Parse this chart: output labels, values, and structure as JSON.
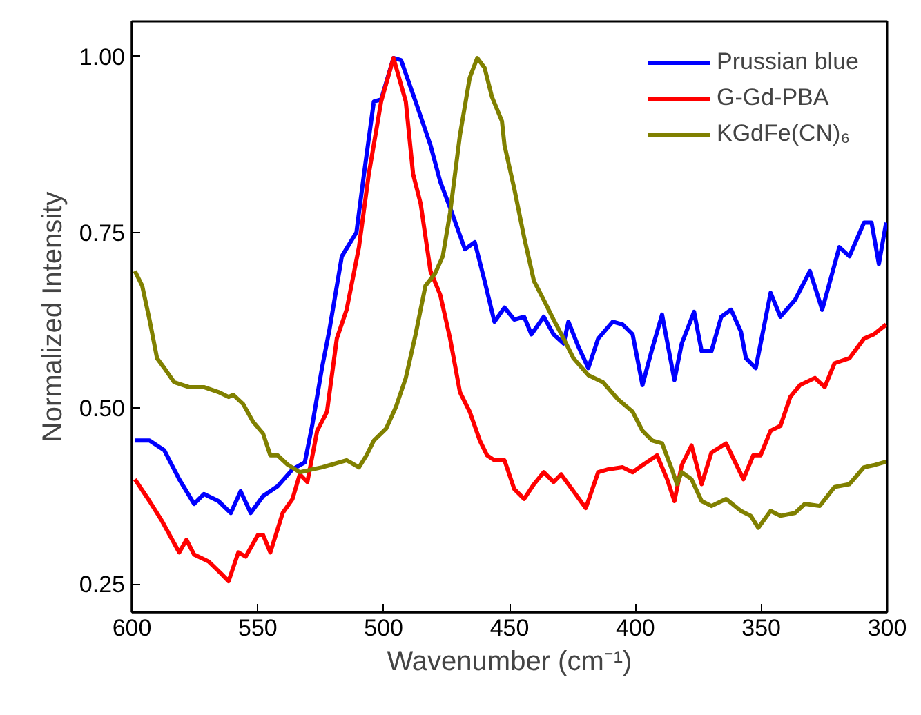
{
  "chart_data": {
    "type": "line",
    "xlabel": "Wavenumber (cm⁻¹)",
    "ylabel": "Normalized Intensity",
    "xlim": [
      600,
      300
    ],
    "ylim": [
      0.21,
      1.05
    ],
    "xticks": [
      600,
      550,
      500,
      450,
      400,
      350,
      300
    ],
    "yticks": [
      {
        "value": 0.25,
        "label": "0.25"
      },
      {
        "value": 0.5,
        "label": "0.50"
      },
      {
        "value": 0.75,
        "label": "0.75"
      },
      {
        "value": 1.0,
        "label": "1.00"
      }
    ],
    "grid": false,
    "legend": "top right",
    "marker": "none",
    "line_style": "solid",
    "series": [
      {
        "name": "Prussian blue",
        "color": "#0000ff",
        "x": [
          598.8,
          593.0,
          587.1,
          581.2,
          575.3,
          571.4,
          565.6,
          560.7,
          556.8,
          552.8,
          547.9,
          542.1,
          536.2,
          531.3,
          528.4,
          524.5,
          521.5,
          516.6,
          510.8,
          507.8,
          503.9,
          501.0,
          496.1,
          493.1,
          487.3,
          481.4,
          477.5,
          473.6,
          467.7,
          463.8,
          459.9,
          456.0,
          452.0,
          448.1,
          444.2,
          441.3,
          436.4,
          432.5,
          428.5,
          426.6,
          422.7,
          418.7,
          414.8,
          409.0,
          405.1,
          401.1,
          397.2,
          393.3,
          389.4,
          384.5,
          381.6,
          376.7,
          373.7,
          369.8,
          365.9,
          362.0,
          358.1,
          356.1,
          352.2,
          346.3,
          342.4,
          336.6,
          330.7,
          325.8,
          319.0,
          315.0,
          309.2,
          306.2,
          303.3,
          300.4
        ],
        "values": [
          0.454,
          0.454,
          0.44,
          0.399,
          0.364,
          0.378,
          0.368,
          0.351,
          0.382,
          0.351,
          0.375,
          0.389,
          0.413,
          0.423,
          0.475,
          0.557,
          0.612,
          0.716,
          0.75,
          0.833,
          0.936,
          0.939,
          0.998,
          0.995,
          0.936,
          0.874,
          0.822,
          0.785,
          0.726,
          0.736,
          0.681,
          0.623,
          0.643,
          0.626,
          0.63,
          0.605,
          0.63,
          0.605,
          0.592,
          0.623,
          0.588,
          0.557,
          0.599,
          0.623,
          0.619,
          0.605,
          0.533,
          0.585,
          0.633,
          0.54,
          0.592,
          0.637,
          0.581,
          0.581,
          0.63,
          0.64,
          0.609,
          0.571,
          0.557,
          0.664,
          0.63,
          0.654,
          0.695,
          0.64,
          0.729,
          0.716,
          0.764,
          0.764,
          0.705,
          0.764
        ]
      },
      {
        "name": "G-Gd-PBA",
        "color": "#ff0000",
        "x": [
          598.8,
          593.0,
          588.1,
          581.2,
          578.3,
          575.3,
          569.5,
          564.6,
          561.6,
          557.7,
          554.8,
          549.9,
          547.9,
          545.0,
          540.1,
          536.2,
          533.3,
          530.3,
          526.4,
          522.5,
          518.6,
          514.7,
          509.8,
          505.9,
          501.0,
          496.1,
          491.2,
          488.3,
          485.3,
          481.4,
          477.5,
          473.6,
          469.7,
          465.8,
          461.8,
          458.9,
          456.0,
          452.0,
          448.1,
          444.2,
          440.3,
          436.4,
          432.5,
          429.5,
          424.6,
          419.7,
          414.8,
          410.9,
          405.1,
          401.1,
          397.2,
          391.4,
          387.4,
          384.5,
          381.6,
          377.7,
          373.7,
          369.8,
          364.0,
          357.1,
          353.2,
          350.3,
          346.3,
          342.4,
          338.5,
          334.6,
          328.7,
          324.8,
          320.9,
          315.0,
          309.2,
          305.3,
          300.4
        ],
        "values": [
          0.399,
          0.368,
          0.34,
          0.295,
          0.313,
          0.292,
          0.282,
          0.265,
          0.254,
          0.295,
          0.289,
          0.32,
          0.32,
          0.295,
          0.351,
          0.371,
          0.406,
          0.395,
          0.468,
          0.495,
          0.599,
          0.64,
          0.729,
          0.833,
          0.936,
          0.998,
          0.936,
          0.833,
          0.791,
          0.695,
          0.661,
          0.599,
          0.523,
          0.495,
          0.454,
          0.433,
          0.426,
          0.426,
          0.385,
          0.371,
          0.392,
          0.409,
          0.395,
          0.406,
          0.382,
          0.358,
          0.409,
          0.413,
          0.416,
          0.409,
          0.419,
          0.433,
          0.399,
          0.368,
          0.419,
          0.447,
          0.392,
          0.437,
          0.45,
          0.399,
          0.433,
          0.433,
          0.468,
          0.475,
          0.516,
          0.533,
          0.543,
          0.53,
          0.564,
          0.571,
          0.599,
          0.605,
          0.619
        ]
      },
      {
        "name": "KGdFe(CN)₆",
        "color": "#808000",
        "x": [
          598.8,
          595.9,
          593.0,
          590.0,
          587.1,
          583.2,
          577.3,
          571.4,
          565.6,
          561.6,
          559.7,
          555.8,
          551.9,
          547.9,
          545.0,
          542.1,
          538.2,
          533.3,
          528.4,
          524.5,
          520.5,
          514.7,
          509.8,
          506.8,
          503.9,
          499.0,
          495.1,
          491.2,
          487.3,
          483.4,
          479.5,
          476.5,
          473.6,
          469.7,
          465.8,
          462.8,
          459.9,
          457.0,
          453.0,
          452.0,
          448.1,
          444.2,
          440.3,
          436.4,
          432.5,
          428.5,
          424.6,
          418.7,
          412.9,
          407.0,
          401.1,
          397.2,
          393.3,
          389.4,
          385.5,
          383.5,
          381.6,
          377.7,
          373.7,
          369.8,
          364.0,
          358.1,
          354.2,
          351.2,
          346.3,
          342.4,
          336.6,
          332.7,
          326.8,
          320.9,
          315.0,
          309.2,
          305.3,
          300.4
        ],
        "values": [
          0.695,
          0.674,
          0.626,
          0.571,
          0.557,
          0.537,
          0.53,
          0.53,
          0.523,
          0.516,
          0.519,
          0.506,
          0.481,
          0.464,
          0.433,
          0.433,
          0.42,
          0.409,
          0.413,
          0.416,
          0.42,
          0.426,
          0.416,
          0.433,
          0.454,
          0.471,
          0.502,
          0.543,
          0.605,
          0.674,
          0.692,
          0.716,
          0.778,
          0.888,
          0.97,
          0.998,
          0.984,
          0.943,
          0.908,
          0.874,
          0.812,
          0.743,
          0.681,
          0.654,
          0.626,
          0.599,
          0.571,
          0.547,
          0.537,
          0.513,
          0.495,
          0.468,
          0.454,
          0.45,
          0.413,
          0.392,
          0.409,
          0.399,
          0.368,
          0.361,
          0.371,
          0.354,
          0.347,
          0.33,
          0.354,
          0.347,
          0.351,
          0.364,
          0.361,
          0.388,
          0.392,
          0.416,
          0.419,
          0.424
        ]
      }
    ]
  }
}
